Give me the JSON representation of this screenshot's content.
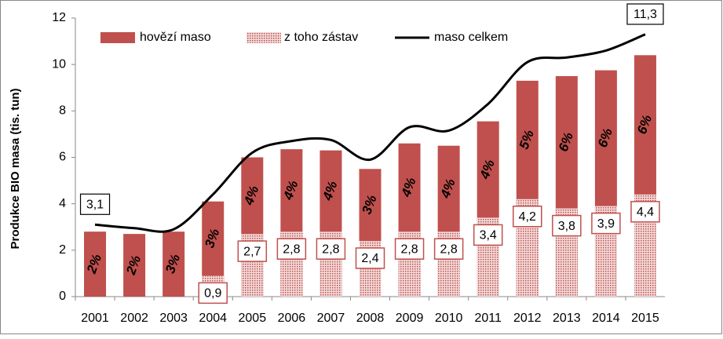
{
  "chart_data": {
    "type": "bar",
    "y_label": "Produkce  BIO masa (tis. tun)",
    "categories": [
      "2001",
      "2002",
      "2003",
      "2004",
      "2005",
      "2006",
      "2007",
      "2008",
      "2009",
      "2010",
      "2011",
      "2012",
      "2013",
      "2014",
      "2015"
    ],
    "ylim": [
      0,
      12
    ],
    "yticks": [
      0,
      2,
      4,
      6,
      8,
      10,
      12
    ],
    "series": [
      {
        "name": "hovězí maso",
        "type": "bar",
        "color": "#c0504d",
        "values": [
          2.8,
          2.7,
          2.8,
          4.1,
          6.0,
          6.35,
          6.3,
          5.5,
          6.6,
          6.5,
          7.55,
          9.3,
          9.5,
          9.75,
          10.4
        ],
        "annotations": [
          "2%",
          "2%",
          "3%",
          "3%",
          "4%",
          "4%",
          "4%",
          "3%",
          "4%",
          "4%",
          "4%",
          "5%",
          "6%",
          "6%",
          "6%"
        ]
      },
      {
        "name": "z toho zástav",
        "type": "overlay",
        "color": "#e6b9b8",
        "values": [
          null,
          null,
          null,
          0.9,
          2.7,
          2.8,
          2.8,
          2.4,
          2.8,
          2.8,
          3.4,
          4.2,
          3.8,
          3.9,
          4.4
        ],
        "value_labels": [
          null,
          null,
          null,
          "0,9",
          "2,7",
          "2,8",
          "2,8",
          "2,4",
          "2,8",
          "2,8",
          "3,4",
          "4,2",
          "3,8",
          "3,9",
          "4,4"
        ]
      },
      {
        "name": "maso celkem",
        "type": "line",
        "color": "#000000",
        "values": [
          3.1,
          2.95,
          2.9,
          4.4,
          6.2,
          6.7,
          6.75,
          5.9,
          7.3,
          7.15,
          8.3,
          10.1,
          10.3,
          10.6,
          11.3
        ],
        "value_labels": [
          "3,1",
          null,
          null,
          null,
          null,
          null,
          null,
          null,
          null,
          null,
          null,
          null,
          null,
          null,
          "11,3"
        ]
      }
    ]
  }
}
